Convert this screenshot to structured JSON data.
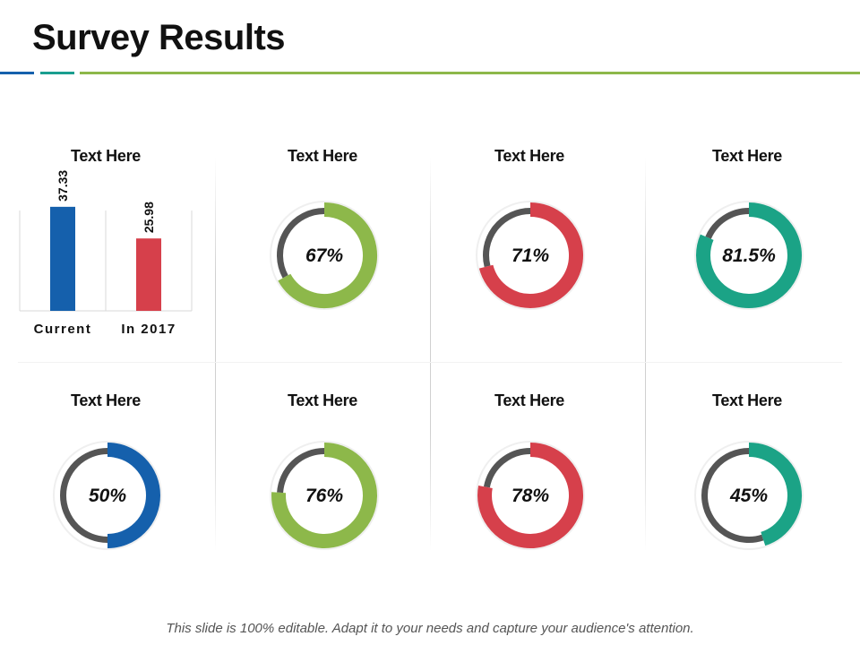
{
  "page": {
    "title": "Survey Results",
    "footer": "This slide is 100% editable. Adapt it to your needs and capture your audience's attention."
  },
  "colors": {
    "blue": "#1560AC",
    "teal_accent": "#1A9E8F",
    "green": "#8DB84A",
    "red": "#D6404B",
    "teal": "#1BA386",
    "track": "#555555"
  },
  "chart_data": [
    {
      "type": "bar",
      "title": "Text Here",
      "categories": [
        "Current",
        "In 2017"
      ],
      "values": [
        37.33,
        25.98
      ],
      "value_labels": [
        "37.33",
        "25.98"
      ],
      "colors": [
        "#1560AC",
        "#D6404B"
      ],
      "ylim": [
        0,
        45
      ]
    },
    {
      "type": "pie",
      "title": "Text Here",
      "value": 67,
      "label": "67%",
      "color": "#8DB84A"
    },
    {
      "type": "pie",
      "title": "Text Here",
      "value": 71,
      "label": "71%",
      "color": "#D6404B"
    },
    {
      "type": "pie",
      "title": "Text Here",
      "value": 81.5,
      "label": "81.5%",
      "color": "#1BA386"
    },
    {
      "type": "pie",
      "title": "Text Here",
      "value": 50,
      "label": "50%",
      "color": "#1560AC"
    },
    {
      "type": "pie",
      "title": "Text Here",
      "value": 76,
      "label": "76%",
      "color": "#8DB84A"
    },
    {
      "type": "pie",
      "title": "Text Here",
      "value": 78,
      "label": "78%",
      "color": "#D6404B"
    },
    {
      "type": "pie",
      "title": "Text Here",
      "value": 45,
      "label": "45%",
      "color": "#1BA386"
    }
  ]
}
